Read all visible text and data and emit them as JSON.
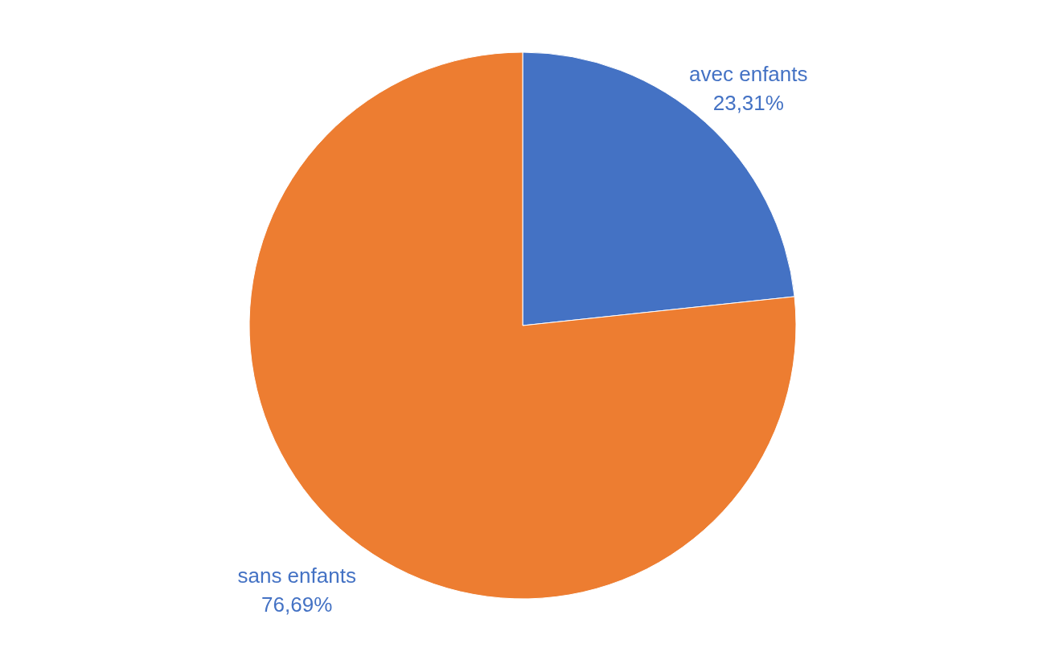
{
  "chart_data": {
    "type": "pie",
    "categories": [
      "avec enfants",
      "sans enfants"
    ],
    "values": [
      23.31,
      76.69
    ],
    "colors": [
      "#4472c4",
      "#ed7d31"
    ],
    "value_labels": [
      "23,31%",
      "76,69%"
    ]
  }
}
